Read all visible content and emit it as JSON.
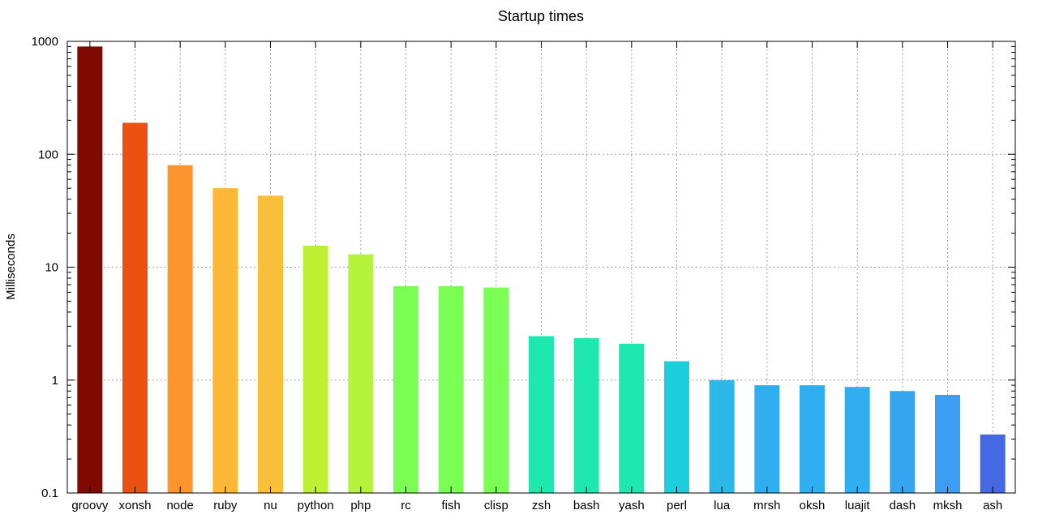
{
  "chart_data": {
    "type": "bar",
    "title": "Startup times",
    "ylabel": "Milliseconds",
    "xlabel": "",
    "yscale": "log",
    "ylim": [
      0.1,
      1000
    ],
    "yticks": [
      0.1,
      1,
      10,
      100,
      1000
    ],
    "ytick_labels": [
      "0.1",
      "1",
      "10",
      "100",
      "1000"
    ],
    "grid": true,
    "categories": [
      "groovy",
      "xonsh",
      "node",
      "ruby",
      "nu",
      "python",
      "php",
      "rc",
      "fish",
      "clisp",
      "zsh",
      "bash",
      "yash",
      "perl",
      "lua",
      "mrsh",
      "oksh",
      "luajit",
      "dash",
      "mksh",
      "ash"
    ],
    "values": [
      900,
      190,
      80,
      50,
      43,
      15.5,
      13,
      6.8,
      6.8,
      6.6,
      2.45,
      2.35,
      2.1,
      1.47,
      1.0,
      0.9,
      0.9,
      0.87,
      0.8,
      0.74,
      0.33
    ],
    "colors": [
      "#800a00",
      "#eb5212",
      "#fd942d",
      "#feb838",
      "#f9bf3b",
      "#bef133",
      "#b5f43a",
      "#7cff55",
      "#7cff55",
      "#7cff55",
      "#1fe8af",
      "#1fe8af",
      "#1fe8af",
      "#1ccfdc",
      "#2cb8e6",
      "#31aeef",
      "#31aeef",
      "#31aeef",
      "#36a5f1",
      "#3b9ef2",
      "#4469e3"
    ]
  }
}
